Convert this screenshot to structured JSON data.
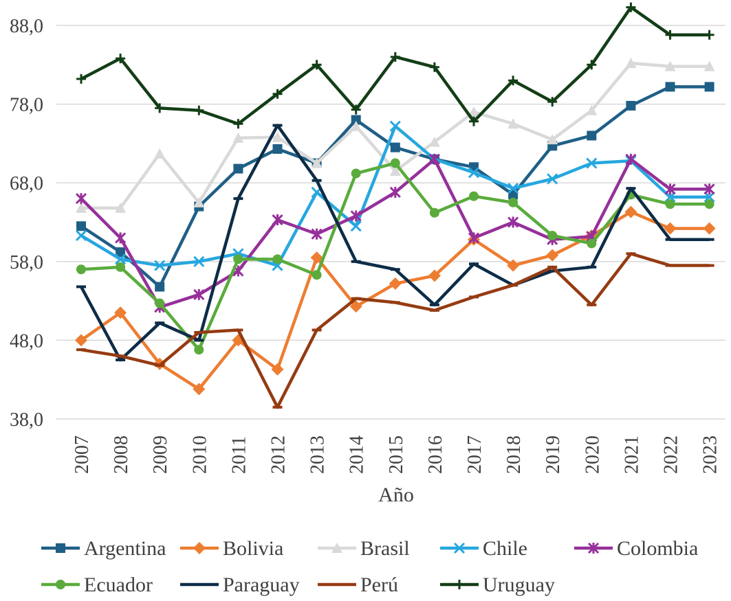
{
  "chart_data": {
    "type": "line",
    "title": "",
    "xlabel": "Año",
    "ylabel": "",
    "ylim": [
      38,
      90
    ],
    "yticks": [
      38,
      48,
      58,
      68,
      78,
      88
    ],
    "ytick_labels": [
      "38,0",
      "48,0",
      "58,0",
      "68,0",
      "78,0",
      "88,0"
    ],
    "grid": true,
    "legend_position": "bottom",
    "categories": [
      "2007",
      "2008",
      "2009",
      "2010",
      "2011",
      "2012",
      "2013",
      "2014",
      "2015",
      "2016",
      "2017",
      "2018",
      "2019",
      "2020",
      "2021",
      "2022",
      "2023"
    ],
    "series": [
      {
        "name": "Argentina",
        "color": "#1f5f86",
        "marker": "square",
        "values": [
          62.5,
          59.2,
          54.8,
          65.0,
          69.8,
          72.3,
          70.5,
          76.0,
          72.5,
          71.0,
          70.0,
          66.5,
          72.7,
          74.0,
          77.8,
          80.2,
          80.2
        ]
      },
      {
        "name": "Bolivia",
        "color": "#ed7d31",
        "marker": "diamond",
        "values": [
          48.0,
          51.5,
          45.0,
          41.8,
          48.0,
          44.3,
          58.5,
          52.3,
          55.2,
          56.2,
          60.8,
          57.5,
          58.8,
          61.3,
          64.3,
          62.2,
          62.2
        ]
      },
      {
        "name": "Brasil",
        "color": "#d9d9d9",
        "marker": "triangle",
        "values": [
          64.8,
          64.8,
          71.7,
          65.5,
          73.7,
          73.8,
          70.5,
          75.2,
          69.5,
          73.2,
          77.0,
          75.5,
          73.5,
          77.2,
          83.2,
          82.8,
          82.8
        ]
      },
      {
        "name": "Chile",
        "color": "#26a7df",
        "marker": "x",
        "values": [
          61.3,
          58.3,
          57.5,
          58.0,
          59.0,
          57.5,
          66.8,
          62.5,
          75.2,
          71.0,
          69.3,
          67.3,
          68.5,
          70.5,
          70.8,
          66.2,
          66.2
        ]
      },
      {
        "name": "Colombia",
        "color": "#96309a",
        "marker": "star",
        "values": [
          66.0,
          61.0,
          52.2,
          53.8,
          56.8,
          63.3,
          61.5,
          63.8,
          66.8,
          71.0,
          61.0,
          63.0,
          60.8,
          61.2,
          71.0,
          67.2,
          67.2
        ]
      },
      {
        "name": "Ecuador",
        "color": "#5aab3c",
        "marker": "circle",
        "values": [
          57.0,
          57.3,
          52.7,
          46.8,
          58.3,
          58.3,
          56.3,
          69.2,
          70.5,
          64.2,
          66.3,
          65.5,
          61.3,
          60.3,
          66.5,
          65.3,
          65.3
        ]
      },
      {
        "name": "Paraguay",
        "color": "#0d2c47",
        "marker": "dash",
        "values": [
          54.8,
          45.5,
          50.2,
          48.0,
          66.0,
          75.3,
          68.3,
          58.0,
          57.0,
          52.5,
          57.7,
          55.0,
          56.8,
          57.3,
          67.3,
          60.8,
          60.8
        ]
      },
      {
        "name": "Perú",
        "color": "#953b12",
        "marker": "dash",
        "values": [
          46.8,
          46.0,
          44.8,
          49.0,
          49.3,
          39.5,
          49.3,
          53.3,
          52.8,
          51.8,
          53.5,
          55.0,
          57.3,
          52.5,
          59.0,
          57.5,
          57.5
        ]
      },
      {
        "name": "Uruguay",
        "color": "#133e16",
        "marker": "plus",
        "values": [
          81.2,
          83.8,
          77.5,
          77.2,
          75.5,
          79.3,
          83.0,
          77.3,
          84.0,
          82.7,
          75.8,
          81.0,
          78.3,
          83.0,
          90.3,
          86.8,
          86.8
        ]
      }
    ]
  }
}
